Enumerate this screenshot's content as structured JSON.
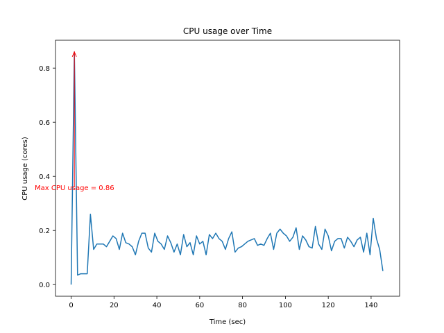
{
  "chart_data": {
    "type": "line",
    "title": "CPU usage over Time",
    "xlabel": "Time (sec)",
    "ylabel": "CPU usage (cores)",
    "xlim": [
      -7.3,
      153.3
    ],
    "ylim": [
      -0.043,
      0.903
    ],
    "xticks": [
      0,
      20,
      40,
      60,
      80,
      100,
      120,
      140
    ],
    "yticks": [
      0.0,
      0.2,
      0.4,
      0.6,
      0.8
    ],
    "grid": false,
    "series": [
      {
        "color": "#1f77b4",
        "x": [
          0,
          1.5,
          3,
          4.5,
          6,
          7.5,
          9,
          10.5,
          12,
          13.5,
          15,
          16.5,
          18,
          19.5,
          21,
          22.5,
          24,
          25.5,
          27,
          28.5,
          30,
          31.5,
          33,
          34.5,
          36,
          37.5,
          39,
          40.5,
          42,
          43.5,
          45,
          46.5,
          48,
          49.5,
          51,
          52.5,
          54,
          55.5,
          57,
          58.5,
          60,
          61.5,
          63,
          64.5,
          66,
          67.5,
          69,
          70.5,
          72,
          73.5,
          75,
          76.5,
          78,
          79.5,
          81,
          82.5,
          84,
          85.5,
          87,
          88.5,
          90,
          91.5,
          93,
          94.5,
          96,
          97.5,
          99,
          100.5,
          102,
          103.5,
          105,
          106.5,
          108,
          109.5,
          111,
          112.5,
          114,
          115.5,
          117,
          118.5,
          120,
          121.5,
          123,
          124.5,
          126,
          127.5,
          129,
          130.5,
          132,
          133.5,
          135,
          136.5,
          138,
          139.5,
          141,
          142.5,
          144,
          145.5
        ],
        "y": [
          0.0,
          0.86,
          0.035,
          0.04,
          0.04,
          0.04,
          0.26,
          0.13,
          0.15,
          0.15,
          0.15,
          0.14,
          0.16,
          0.18,
          0.17,
          0.13,
          0.19,
          0.155,
          0.15,
          0.14,
          0.11,
          0.16,
          0.19,
          0.19,
          0.135,
          0.12,
          0.19,
          0.16,
          0.15,
          0.13,
          0.18,
          0.155,
          0.12,
          0.15,
          0.11,
          0.185,
          0.14,
          0.155,
          0.11,
          0.18,
          0.15,
          0.16,
          0.11,
          0.185,
          0.17,
          0.19,
          0.17,
          0.16,
          0.13,
          0.17,
          0.195,
          0.12,
          0.135,
          0.14,
          0.15,
          0.16,
          0.165,
          0.17,
          0.145,
          0.15,
          0.145,
          0.17,
          0.19,
          0.13,
          0.19,
          0.205,
          0.19,
          0.18,
          0.16,
          0.175,
          0.21,
          0.13,
          0.18,
          0.165,
          0.14,
          0.135,
          0.215,
          0.15,
          0.13,
          0.205,
          0.18,
          0.125,
          0.16,
          0.17,
          0.17,
          0.135,
          0.175,
          0.16,
          0.14,
          0.165,
          0.175,
          0.12,
          0.19,
          0.11,
          0.245,
          0.17,
          0.13,
          0.05
        ]
      }
    ],
    "annotation": {
      "text": "Max CPU usage = 0.86",
      "color": "#ff0000",
      "text_x": -17,
      "text_y": 0.36,
      "arrow_to_x": 1.5,
      "arrow_to_y": 0.86
    }
  }
}
